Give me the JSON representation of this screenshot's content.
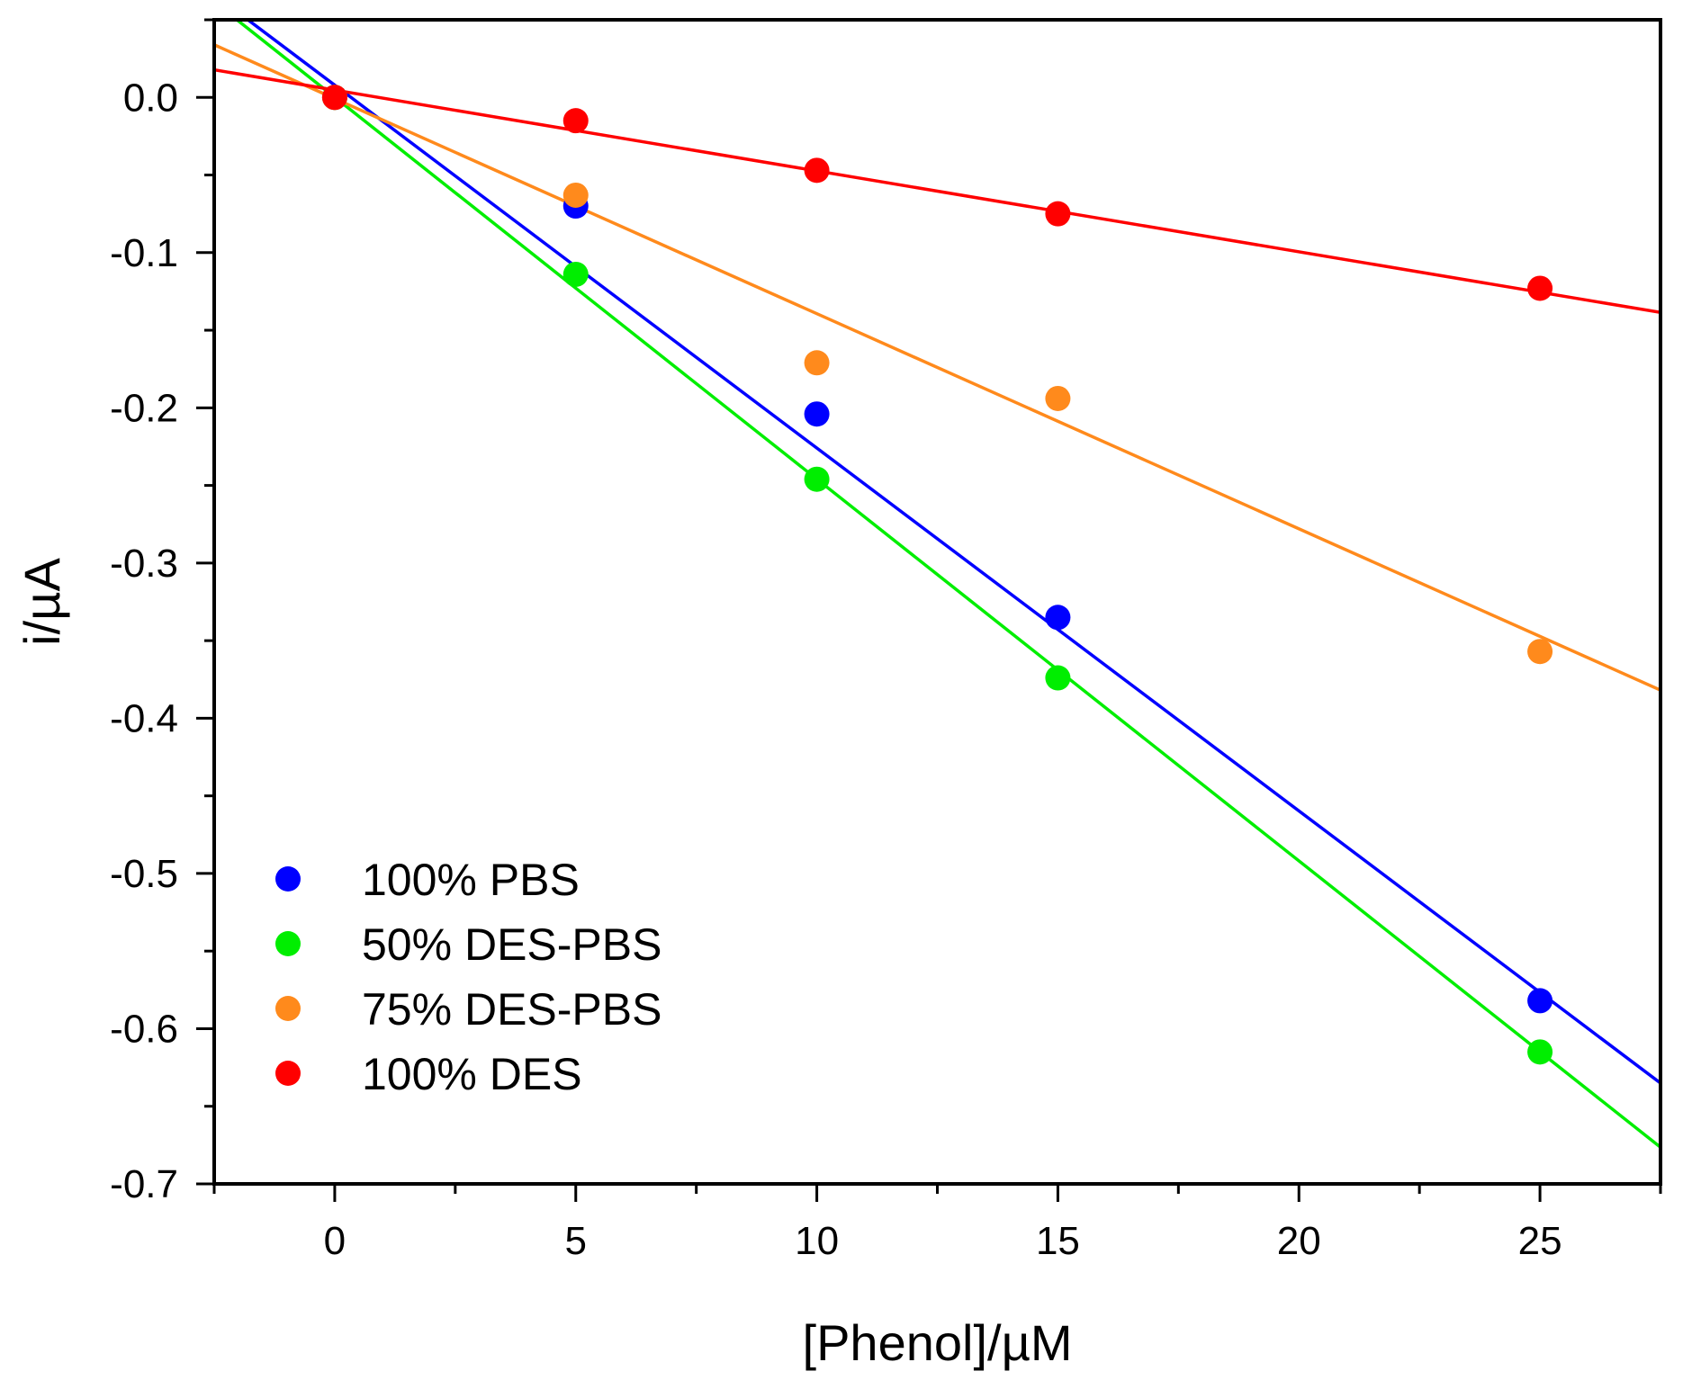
{
  "chart_data": {
    "type": "scatter",
    "title": "",
    "xlabel": "[Phenol]/µM",
    "ylabel": "i/µA",
    "xlim": [
      -2.5,
      27.5
    ],
    "ylim": [
      -0.7,
      0.05
    ],
    "xticks": [
      0,
      5,
      10,
      15,
      20,
      25
    ],
    "xtick_labels": [
      "0",
      "5",
      "10",
      "15",
      "20",
      "25"
    ],
    "yticks": [
      0.0,
      -0.1,
      -0.2,
      -0.3,
      -0.4,
      -0.5,
      -0.6,
      -0.7
    ],
    "ytick_labels": [
      "0.0",
      "-0.1",
      "-0.2",
      "-0.3",
      "-0.4",
      "-0.5",
      "-0.6",
      "-0.7"
    ],
    "grid": false,
    "legend_position": "bottom-left",
    "series": [
      {
        "name": "100% PBS",
        "color": "#0000ff",
        "x": [
          0,
          5,
          10,
          15,
          25
        ],
        "y": [
          0.0,
          -0.07,
          -0.204,
          -0.335,
          -0.582
        ],
        "fit": {
          "slope": -0.02338,
          "intercept": 0.00789
        }
      },
      {
        "name": "50% DES-PBS",
        "color": "#00ee00",
        "x": [
          0,
          5,
          10,
          15,
          25
        ],
        "y": [
          0.0,
          -0.114,
          -0.246,
          -0.374,
          -0.615
        ],
        "fit": {
          "slope": -0.0246,
          "intercept": 0.0001
        }
      },
      {
        "name": "75% DES-PBS",
        "color": "#ff8a1c",
        "x": [
          0,
          5,
          10,
          15,
          25
        ],
        "y": [
          0.0,
          -0.063,
          -0.171,
          -0.194,
          -0.357
        ],
        "fit": {
          "slope": -0.01386,
          "intercept": -0.00075
        }
      },
      {
        "name": "100% DES",
        "color": "#ff0000",
        "x": [
          0,
          5,
          10,
          15,
          25
        ],
        "y": [
          0.0,
          -0.015,
          -0.047,
          -0.075,
          -0.123
        ],
        "fit": {
          "slope": -0.00521,
          "intercept": 0.00473
        }
      }
    ]
  }
}
